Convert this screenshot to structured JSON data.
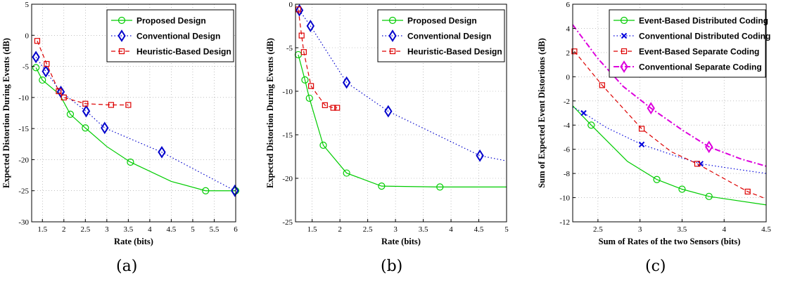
{
  "captions": [
    "(a)",
    "(b)",
    "(c)"
  ],
  "chart_data": [
    {
      "type": "line",
      "xlabel": "Rate (bits)",
      "ylabel": "Expected Distortion During Events (dB)",
      "xlim": [
        1.25,
        6
      ],
      "ylim": [
        -30,
        5
      ],
      "xticks": [
        1.5,
        2,
        2.5,
        3,
        3.5,
        4,
        4.5,
        5,
        5.5,
        6
      ],
      "yticks": [
        -30,
        -25,
        -20,
        -15,
        -10,
        -5,
        0,
        5
      ],
      "grid": true,
      "legend_position": "top-right",
      "series": [
        {
          "name": "Proposed Design",
          "color": "#00cc00",
          "dash": "solid",
          "marker": "circle",
          "x": [
            1.35,
            1.5,
            1.9,
            2.15,
            2.5,
            3.0,
            3.55,
            4.5,
            5.3,
            6.0
          ],
          "y": [
            -5.2,
            -7.2,
            -9.5,
            -12.7,
            -14.9,
            -17.9,
            -20.4,
            -23.5,
            -25.0,
            -25.0
          ],
          "marker_idx": [
            0,
            1,
            3,
            4,
            6,
            8,
            9
          ]
        },
        {
          "name": "Conventional Design",
          "color": "#0000cc",
          "dash": "dot",
          "marker": "diamond",
          "x": [
            1.35,
            1.58,
            1.93,
            2.52,
            2.95,
            4.28,
            5.98
          ],
          "y": [
            -3.5,
            -5.8,
            -9.1,
            -12.2,
            -14.9,
            -18.8,
            -25.0
          ],
          "marker_idx": [
            0,
            1,
            2,
            3,
            4,
            5,
            6
          ]
        },
        {
          "name": "Heuristic-Based Design",
          "color": "#dd0000",
          "dash": "dash",
          "marker": "square",
          "x": [
            1.38,
            1.6,
            1.88,
            2.0,
            2.5,
            3.1,
            3.5
          ],
          "y": [
            -0.9,
            -4.6,
            -9.0,
            -10.0,
            -11.0,
            -11.2,
            -11.2
          ],
          "marker_idx": [
            0,
            1,
            2,
            3,
            4,
            5,
            6
          ]
        }
      ]
    },
    {
      "type": "line",
      "xlabel": "Rate (bits)",
      "ylabel": "Expected Distortion During Events (dB)",
      "xlim": [
        1.2,
        5
      ],
      "ylim": [
        -25,
        0
      ],
      "xticks": [
        1.5,
        2,
        2.5,
        3,
        3.5,
        4,
        4.5,
        5
      ],
      "yticks": [
        -25,
        -20,
        -15,
        -10,
        -5,
        0
      ],
      "grid": true,
      "legend_position": "top-right",
      "series": [
        {
          "name": "Proposed Design",
          "color": "#00cc00",
          "dash": "solid",
          "marker": "circle",
          "x": [
            1.25,
            1.37,
            1.45,
            1.7,
            2.12,
            2.75,
            3.8,
            5.0
          ],
          "y": [
            -5.8,
            -8.7,
            -10.8,
            -16.2,
            -19.4,
            -20.9,
            -21.0,
            -21.0
          ],
          "marker_idx": [
            0,
            1,
            2,
            3,
            4,
            5,
            6
          ]
        },
        {
          "name": "Conventional Design",
          "color": "#0000cc",
          "dash": "dot",
          "marker": "diamond",
          "x": [
            1.27,
            1.47,
            2.12,
            2.87,
            4.52,
            5.0
          ],
          "y": [
            -0.7,
            -2.5,
            -9.0,
            -12.3,
            -17.4,
            -18.0
          ],
          "marker_idx": [
            0,
            1,
            2,
            3,
            4
          ]
        },
        {
          "name": "Heuristic-Based Design",
          "color": "#dd0000",
          "dash": "dash",
          "marker": "square",
          "x": [
            1.25,
            1.31,
            1.35,
            1.48,
            1.73,
            1.88,
            1.95
          ],
          "y": [
            -0.6,
            -3.6,
            -5.5,
            -9.4,
            -11.6,
            -11.9,
            -11.9
          ],
          "marker_idx": [
            0,
            1,
            2,
            3,
            4,
            5,
            6
          ]
        }
      ]
    },
    {
      "type": "line",
      "xlabel": "Sum of Rates of the two Sensors (bits)",
      "ylabel": "Sum of Expected Event Distortions (dB)",
      "xlim": [
        2.2,
        4.5
      ],
      "ylim": [
        -12,
        6
      ],
      "xticks": [
        2.5,
        3,
        3.5,
        4,
        4.5
      ],
      "yticks": [
        -12,
        -10,
        -8,
        -6,
        -4,
        -2,
        0,
        2,
        4,
        6
      ],
      "grid": true,
      "legend_position": "top-right",
      "series": [
        {
          "name": "Event-Based Distributed Coding",
          "color": "#00cc00",
          "dash": "solid",
          "marker": "circle",
          "x": [
            2.2,
            2.42,
            2.85,
            3.2,
            3.5,
            3.82,
            4.5
          ],
          "y": [
            -2.4,
            -4.0,
            -7.0,
            -8.5,
            -9.3,
            -9.9,
            -10.6
          ],
          "marker_idx": [
            1,
            3,
            4,
            5
          ]
        },
        {
          "name": "Conventional Distributed Coding",
          "color": "#0000dd",
          "dash": "dot",
          "marker": "x",
          "x": [
            2.2,
            2.33,
            2.6,
            3.02,
            3.4,
            3.72,
            4.1,
            4.5
          ],
          "y": [
            -2.5,
            -3.0,
            -4.2,
            -5.6,
            -6.5,
            -7.2,
            -7.6,
            -8.0
          ],
          "marker_idx": [
            1,
            3,
            5
          ]
        },
        {
          "name": "Event-Based Separate Coding",
          "color": "#dd0000",
          "dash": "dash",
          "marker": "square",
          "x": [
            2.22,
            2.55,
            3.02,
            3.37,
            3.68,
            4.28,
            4.5
          ],
          "y": [
            2.1,
            -0.7,
            -4.3,
            -6.2,
            -7.2,
            -9.5,
            -10.1
          ],
          "marker_idx": [
            0,
            1,
            2,
            4,
            5
          ]
        },
        {
          "name": "Conventional Separate Coding",
          "color": "#dd00dd",
          "dash": "dashdot",
          "marker": "diamond",
          "x": [
            2.2,
            2.5,
            2.8,
            3.13,
            3.5,
            3.82,
            4.2,
            4.5
          ],
          "y": [
            4.3,
            1.5,
            -0.8,
            -2.6,
            -4.4,
            -5.8,
            -6.8,
            -7.4
          ],
          "marker_idx": [
            3,
            5
          ]
        }
      ]
    }
  ]
}
